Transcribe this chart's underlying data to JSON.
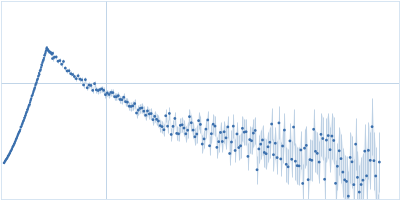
{
  "background_color": "#ffffff",
  "error_color": "#b0c8e0",
  "marker_color": "#3a6fad",
  "grid_color": "#c0d4e8",
  "spine_color": "#d0e0f0",
  "xlim": [
    0.0,
    1.0
  ],
  "ylim": [
    -0.12,
    0.6
  ],
  "vline_x": 0.265,
  "hline_y": 0.3,
  "peak_q": 0.115,
  "peak_val": 0.425,
  "n_low": 120,
  "n_high": 180,
  "q_min": 0.008,
  "q_transition": 0.13,
  "q_max": 0.95,
  "seed": 17
}
